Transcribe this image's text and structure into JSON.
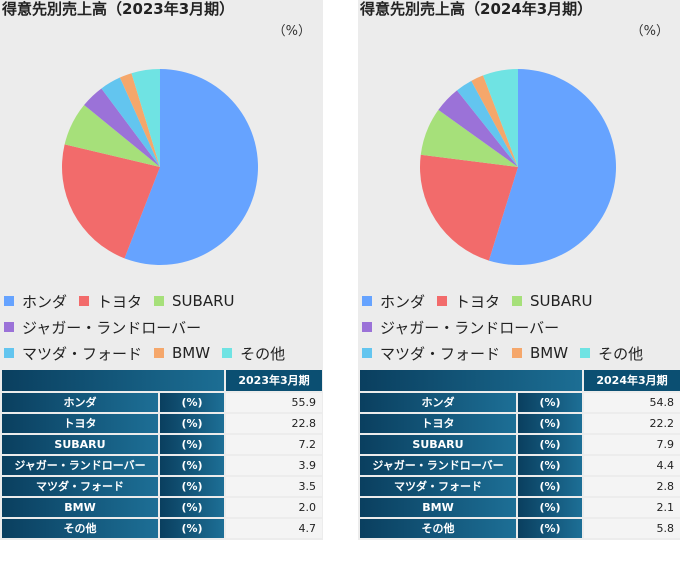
{
  "chart_data": [
    {
      "type": "pie",
      "title": "得意先別売上高（2023年3月期）",
      "unit": "（%）",
      "column_header": "2023年3月期",
      "unit_cell": "(%)",
      "categories": [
        "ホンダ",
        "トヨタ",
        "SUBARU",
        "ジャガー・ランドローバー",
        "マツダ・フォード",
        "BMW",
        "その他"
      ],
      "values": [
        "55.9",
        "22.8",
        "7.2",
        "3.9",
        "3.5",
        "2.0",
        "4.7"
      ],
      "colors": [
        "#66a3ff",
        "#f26b6b",
        "#a6e07a",
        "#9b72d8",
        "#63c5ef",
        "#f5a76b",
        "#6fe3e3"
      ]
    },
    {
      "type": "pie",
      "title": "得意先別売上高（2024年3月期）",
      "unit": "（%）",
      "column_header": "2024年3月期",
      "unit_cell": "(%)",
      "categories": [
        "ホンダ",
        "トヨタ",
        "SUBARU",
        "ジャガー・ランドローバー",
        "マツダ・フォード",
        "BMW",
        "その他"
      ],
      "values": [
        "54.8",
        "22.2",
        "7.9",
        "4.4",
        "2.8",
        "2.1",
        "5.8"
      ],
      "colors": [
        "#66a3ff",
        "#f26b6b",
        "#a6e07a",
        "#9b72d8",
        "#63c5ef",
        "#f5a76b",
        "#6fe3e3"
      ]
    }
  ]
}
